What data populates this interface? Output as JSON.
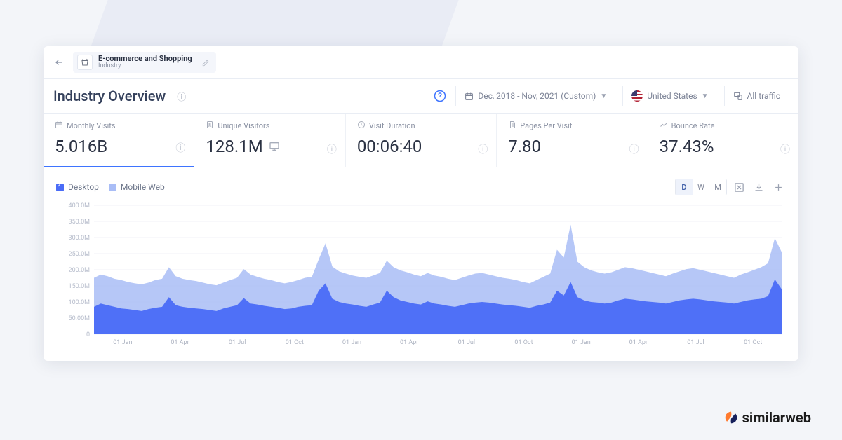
{
  "breadcrumb": {
    "title": "E-commerce and Shopping",
    "subtitle": "Industry"
  },
  "page": {
    "title": "Industry Overview"
  },
  "controls": {
    "date_range": "Dec, 2018 - Nov, 2021 (Custom)",
    "country": "United States",
    "traffic_filter": "All traffic"
  },
  "metrics": [
    {
      "label": "Monthly Visits",
      "value": "5.016B",
      "icon": "calendar",
      "active": true
    },
    {
      "label": "Unique Visitors",
      "value": "128.1M",
      "icon": "user",
      "extra_icon": "desktop"
    },
    {
      "label": "Visit Duration",
      "value": "00:06:40",
      "icon": "clock"
    },
    {
      "label": "Pages Per Visit",
      "value": "7.80",
      "icon": "pages"
    },
    {
      "label": "Bounce Rate",
      "value": "37.43%",
      "icon": "bounce"
    }
  ],
  "legend": {
    "desktop": {
      "label": "Desktop",
      "color": "#4a6cf7",
      "checked": true
    },
    "mobile": {
      "label": "Mobile Web",
      "color": "#a9bdf6",
      "checked": false
    }
  },
  "granularity": {
    "options": [
      "D",
      "W",
      "M"
    ],
    "active": "D"
  },
  "chart": {
    "type": "area",
    "ylim": [
      0,
      400
    ],
    "ytick_step": 50,
    "y_unit": "M",
    "y_labels": [
      "0",
      "50.00M",
      "100.0M",
      "150.0M",
      "200.0M",
      "250.0M",
      "300.0M",
      "350.0M",
      "400.0M"
    ],
    "x_labels": [
      "01 Jan",
      "01 Apr",
      "01 Jul",
      "01 Oct",
      "01 Jan",
      "01 Apr",
      "01 Jul",
      "01 Oct",
      "01 Jan",
      "01 Apr",
      "01 Jul",
      "01 Oct"
    ],
    "colors": {
      "desktop_fill": "#4a6cf7",
      "mobile_fill": "#a9bdf6",
      "grid": "#f0f2f7",
      "axis_text": "#b6bccb",
      "background": "#ffffff"
    },
    "series_desktop": [
      85,
      95,
      90,
      85,
      80,
      78,
      75,
      72,
      78,
      82,
      85,
      115,
      90,
      85,
      82,
      80,
      78,
      75,
      72,
      80,
      85,
      90,
      112,
      95,
      92,
      88,
      85,
      82,
      78,
      80,
      85,
      88,
      90,
      135,
      158,
      110,
      100,
      95,
      92,
      88,
      85,
      92,
      98,
      135,
      115,
      105,
      100,
      95,
      92,
      102,
      95,
      92,
      88,
      85,
      90,
      95,
      98,
      100,
      98,
      95,
      92,
      90,
      88,
      85,
      82,
      88,
      92,
      98,
      135,
      120,
      162,
      115,
      105,
      100,
      98,
      95,
      98,
      105,
      110,
      108,
      105,
      102,
      100,
      98,
      95,
      100,
      105,
      108,
      110,
      108,
      105,
      102,
      100,
      98,
      95,
      100,
      105,
      108,
      110,
      118,
      170,
      140
    ],
    "series_total": [
      175,
      185,
      180,
      172,
      168,
      162,
      158,
      155,
      160,
      168,
      172,
      208,
      180,
      172,
      168,
      165,
      160,
      155,
      152,
      160,
      168,
      175,
      202,
      185,
      178,
      172,
      168,
      162,
      158,
      162,
      168,
      175,
      178,
      232,
      282,
      210,
      195,
      188,
      182,
      178,
      175,
      182,
      190,
      228,
      208,
      198,
      192,
      185,
      180,
      190,
      182,
      178,
      172,
      168,
      175,
      182,
      188,
      190,
      185,
      180,
      175,
      172,
      168,
      162,
      158,
      168,
      178,
      188,
      262,
      238,
      340,
      225,
      208,
      198,
      192,
      188,
      192,
      200,
      208,
      205,
      200,
      195,
      190,
      185,
      180,
      188,
      195,
      202,
      205,
      200,
      195,
      190,
      185,
      180,
      175,
      185,
      192,
      200,
      208,
      220,
      298,
      255
    ]
  },
  "brand": "similarweb"
}
